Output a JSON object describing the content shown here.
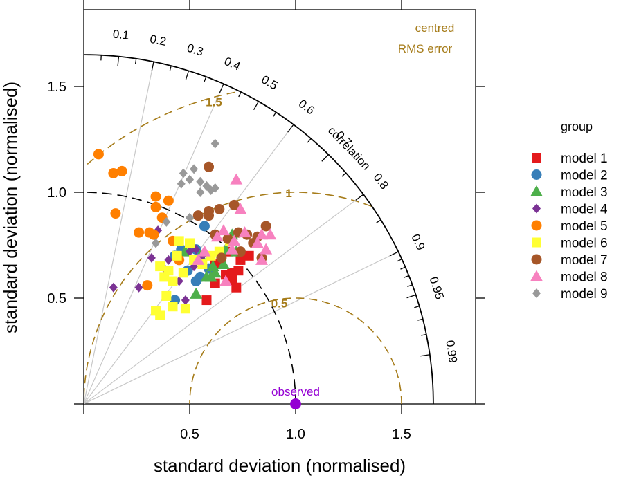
{
  "chart_data": {
    "type": "scatter",
    "subtype": "taylor-diagram",
    "xlabel": "standard deviation (normalised)",
    "ylabel": "standard deviation (normalised)",
    "xlim": [
      0,
      1.85
    ],
    "ylim": [
      0,
      1.85
    ],
    "x_ticks": [
      0.5,
      1.0,
      1.5
    ],
    "x_tick_labels": [
      "0.5",
      "1.0",
      "1.5"
    ],
    "y_ticks": [
      0.5,
      1.0,
      1.5
    ],
    "y_tick_labels": [
      "0.5",
      "1.0",
      "1.5"
    ],
    "outer_arc_sd": 1.65,
    "observed_arc_sd": 1.0,
    "correlation_title": "correlation",
    "correlation_labels": [
      {
        "r": 0.1,
        "label": "0.1"
      },
      {
        "r": 0.2,
        "label": "0.2"
      },
      {
        "r": 0.3,
        "label": "0.3"
      },
      {
        "r": 0.4,
        "label": "0.4"
      },
      {
        "r": 0.5,
        "label": "0.5"
      },
      {
        "r": 0.6,
        "label": "0.6"
      },
      {
        "r": 0.7,
        "label": "0.7"
      },
      {
        "r": 0.8,
        "label": "0.8"
      },
      {
        "r": 0.9,
        "label": "0.9"
      },
      {
        "r": 0.95,
        "label": "0.95"
      },
      {
        "r": 0.99,
        "label": "0.99"
      }
    ],
    "correlation_lines": [
      0.2,
      0.4,
      0.6,
      0.8,
      0.9
    ],
    "rms_title_line1": "centred",
    "rms_title_line2": "RMS error",
    "rms_contours": [
      {
        "value": 0.5,
        "label": "0.5"
      },
      {
        "value": 1.0,
        "label": "1"
      },
      {
        "value": 1.5,
        "label": "1.5"
      }
    ],
    "observed": {
      "sd": 1.0,
      "label": "observed",
      "color": "#9400D3"
    },
    "legend_title": "group",
    "legend_placement": "right",
    "series": [
      {
        "name": "model 1",
        "color": "#E41A1C",
        "shape": "square",
        "points": [
          [
            0.72,
            0.55
          ],
          [
            0.67,
            0.61
          ],
          [
            0.58,
            0.49
          ],
          [
            0.62,
            0.66
          ],
          [
            0.68,
            0.72
          ],
          [
            0.73,
            0.63
          ],
          [
            0.74,
            0.68
          ],
          [
            0.7,
            0.58
          ],
          [
            0.65,
            0.68
          ],
          [
            0.78,
            0.7
          ],
          [
            0.62,
            0.57
          ],
          [
            0.7,
            0.62
          ]
        ]
      },
      {
        "name": "model 2",
        "color": "#377EB8",
        "shape": "circle",
        "points": [
          [
            0.43,
            0.7
          ],
          [
            0.53,
            0.73
          ],
          [
            0.57,
            0.84
          ],
          [
            0.49,
            0.63
          ],
          [
            0.55,
            0.6
          ],
          [
            0.59,
            0.64
          ],
          [
            0.53,
            0.58
          ],
          [
            0.46,
            0.73
          ],
          [
            0.43,
            0.49
          ]
        ]
      },
      {
        "name": "model 3",
        "color": "#4DAF4A",
        "shape": "triangle",
        "points": [
          [
            0.53,
            0.52
          ],
          [
            0.58,
            0.6
          ],
          [
            0.62,
            0.62
          ],
          [
            0.66,
            0.66
          ],
          [
            0.7,
            0.8
          ],
          [
            0.72,
            0.72
          ],
          [
            0.48,
            0.72
          ],
          [
            0.55,
            0.7
          ],
          [
            0.61,
            0.65
          ],
          [
            0.67,
            0.73
          ],
          [
            0.6,
            0.6
          ]
        ]
      },
      {
        "name": "model 4",
        "color": "#7B3294",
        "shape": "diamond",
        "points": [
          [
            0.14,
            0.55
          ],
          [
            0.26,
            0.55
          ],
          [
            0.32,
            0.69
          ],
          [
            0.35,
            0.82
          ],
          [
            0.4,
            0.68
          ],
          [
            0.48,
            0.49
          ],
          [
            0.5,
            0.72
          ],
          [
            0.53,
            0.73
          ],
          [
            0.56,
            0.7
          ],
          [
            0.45,
            0.58
          ],
          [
            0.38,
            0.64
          ],
          [
            0.52,
            0.65
          ]
        ]
      },
      {
        "name": "model 5",
        "color": "#FF7F00",
        "shape": "circle",
        "points": [
          [
            0.07,
            1.18
          ],
          [
            0.14,
            1.09
          ],
          [
            0.18,
            1.1
          ],
          [
            0.15,
            0.9
          ],
          [
            0.34,
            0.98
          ],
          [
            0.34,
            0.93
          ],
          [
            0.4,
            0.96
          ],
          [
            0.37,
            0.88
          ],
          [
            0.26,
            0.81
          ],
          [
            0.31,
            0.81
          ],
          [
            0.33,
            0.8
          ],
          [
            0.42,
            0.77
          ],
          [
            0.45,
            0.68
          ],
          [
            0.3,
            0.56
          ]
        ]
      },
      {
        "name": "model 6",
        "color": "#FFFF33",
        "shape": "square",
        "points": [
          [
            0.34,
            0.44
          ],
          [
            0.36,
            0.42
          ],
          [
            0.39,
            0.51
          ],
          [
            0.42,
            0.46
          ],
          [
            0.48,
            0.45
          ],
          [
            0.42,
            0.58
          ],
          [
            0.38,
            0.6
          ],
          [
            0.36,
            0.65
          ],
          [
            0.4,
            0.63
          ],
          [
            0.44,
            0.7
          ],
          [
            0.45,
            0.77
          ],
          [
            0.5,
            0.76
          ],
          [
            0.56,
            0.66
          ],
          [
            0.6,
            0.7
          ],
          [
            0.64,
            0.72
          ],
          [
            0.69,
            0.77
          ],
          [
            0.47,
            0.62
          ],
          [
            0.52,
            0.68
          ]
        ]
      },
      {
        "name": "model 7",
        "color": "#A65628",
        "shape": "circle",
        "points": [
          [
            0.59,
            0.91
          ],
          [
            0.54,
            0.89
          ],
          [
            0.59,
            0.89
          ],
          [
            0.64,
            0.92
          ],
          [
            0.71,
            0.94
          ],
          [
            0.59,
            1.12
          ],
          [
            0.62,
            0.8
          ],
          [
            0.68,
            0.78
          ],
          [
            0.73,
            0.81
          ],
          [
            0.77,
            0.8
          ],
          [
            0.82,
            0.79
          ],
          [
            0.86,
            0.84
          ],
          [
            0.74,
            0.72
          ],
          [
            0.84,
            0.69
          ],
          [
            0.8,
            0.76
          ],
          [
            0.65,
            0.69
          ]
        ]
      },
      {
        "name": "model 8",
        "color": "#F781BF",
        "shape": "triangle",
        "points": [
          [
            0.72,
            1.06
          ],
          [
            0.74,
            0.92
          ],
          [
            0.66,
            0.82
          ],
          [
            0.71,
            0.77
          ],
          [
            0.76,
            0.81
          ],
          [
            0.82,
            0.76
          ],
          [
            0.84,
            0.8
          ],
          [
            0.88,
            0.8
          ],
          [
            0.86,
            0.73
          ],
          [
            0.84,
            0.68
          ],
          [
            0.63,
            0.79
          ],
          [
            0.57,
            0.72
          ],
          [
            0.54,
            0.68
          ],
          [
            0.67,
            0.58
          ],
          [
            0.7,
            0.73
          ]
        ]
      },
      {
        "name": "model 9",
        "color": "#999999",
        "shape": "diamond",
        "points": [
          [
            0.62,
            1.23
          ],
          [
            0.47,
            1.09
          ],
          [
            0.52,
            1.11
          ],
          [
            0.46,
            1.04
          ],
          [
            0.5,
            1.06
          ],
          [
            0.55,
            1.05
          ],
          [
            0.58,
            1.03
          ],
          [
            0.6,
            1.01
          ],
          [
            0.55,
            1.0
          ],
          [
            0.62,
            1.02
          ],
          [
            0.39,
            0.86
          ],
          [
            0.34,
            0.76
          ],
          [
            0.5,
            0.88
          ]
        ]
      }
    ]
  }
}
